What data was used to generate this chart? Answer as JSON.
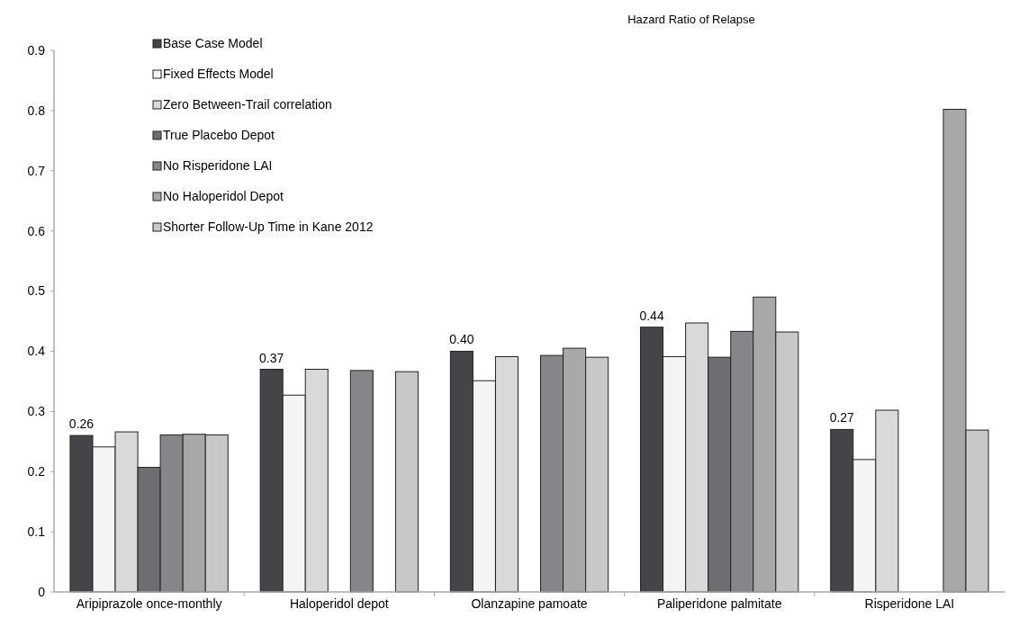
{
  "chart_data": {
    "type": "bar",
    "title": "Hazard Ratio of Relapse",
    "categories": [
      "Aripiprazole once-monthly",
      "Haloperidol depot",
      "Olanzapine pamoate",
      "Paliperidone palmitate",
      "Risperidone LAI"
    ],
    "series": [
      {
        "name": "Base Case Model",
        "color": "#454549",
        "values": [
          0.26,
          0.37,
          0.4,
          0.44,
          0.27
        ],
        "value_labels": [
          "0.26",
          "0.37",
          "0.40",
          "0.44",
          "0.27"
        ]
      },
      {
        "name": "Fixed Effects Model",
        "color": "#f4f4f4",
        "values": [
          0.241,
          0.327,
          0.351,
          0.391,
          0.22
        ]
      },
      {
        "name": "Zero Between-Trail correlation",
        "color": "#d9d9d9",
        "values": [
          0.266,
          0.37,
          0.391,
          0.447,
          0.302
        ]
      },
      {
        "name": "True Placebo Depot",
        "color": "#6e6e72",
        "values": [
          0.207,
          null,
          null,
          0.39,
          null
        ]
      },
      {
        "name": "No Risperidone LAI",
        "color": "#85858a",
        "values": [
          0.261,
          0.368,
          0.393,
          0.433,
          null
        ]
      },
      {
        "name": "No Haloperidol Depot",
        "color": "#a8a8a8",
        "values": [
          0.262,
          null,
          0.405,
          0.49,
          0.802
        ]
      },
      {
        "name": "Shorter Follow-Up Time in Kane 2012",
        "color": "#c8c8c8",
        "values": [
          0.261,
          0.366,
          0.39,
          0.432,
          0.269
        ]
      }
    ],
    "ylim": [
      0,
      0.9
    ],
    "yticks": [
      {
        "value": 0,
        "label": "0"
      },
      0.1,
      0.2,
      0.3,
      0.4,
      0.5,
      0.6,
      0.7,
      0.8,
      0.9
    ],
    "grid": false,
    "legend": "top left"
  }
}
